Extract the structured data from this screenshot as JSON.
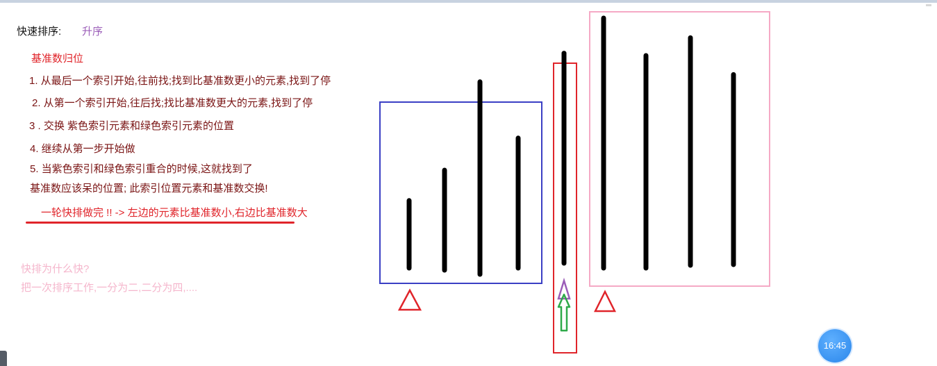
{
  "title": {
    "label": "快速排序:",
    "order": "升序"
  },
  "section": {
    "heading": "基准数归位",
    "steps": [
      "1. 从最后一个索引开始,往前找;找到比基准数更小的元素,找到了停",
      "2. 从第一个索引开始,往后找;找比基准数更大的元素,找到了停",
      "3 . 交换 紫色索引元素和绿色索引元素的位置",
      "4. 继续从第一步开始做",
      "5. 当紫色索引和绿色索引重合的时候,这就找到了",
      "基准数应该呆的位置; 此索引位置元素和基准数交换!"
    ],
    "summary": "一轮快排做完 !! -> 左边的元素比基准数小,右边比基准数大"
  },
  "question": {
    "q": "快排为什么快?",
    "a": "把一次排序工作,一分为二,二分为四,...."
  },
  "diagram": {
    "left_box_color": "#3a3fc4",
    "pivot_box_color": "#e0242a",
    "right_box_color": "#f5a9c5",
    "left_bars": [
      0.27,
      0.4,
      0.77,
      0.52
    ],
    "pivot_bar": [
      0.84
    ],
    "right_bars": [
      1.0,
      0.85,
      0.91,
      0.76
    ]
  },
  "clock": {
    "time": "16:45"
  },
  "icons": {
    "triangle_red": "triangle-icon",
    "triangle_purple": "purple-index-triangle-icon",
    "arrow_green": "green-index-arrow-icon"
  }
}
